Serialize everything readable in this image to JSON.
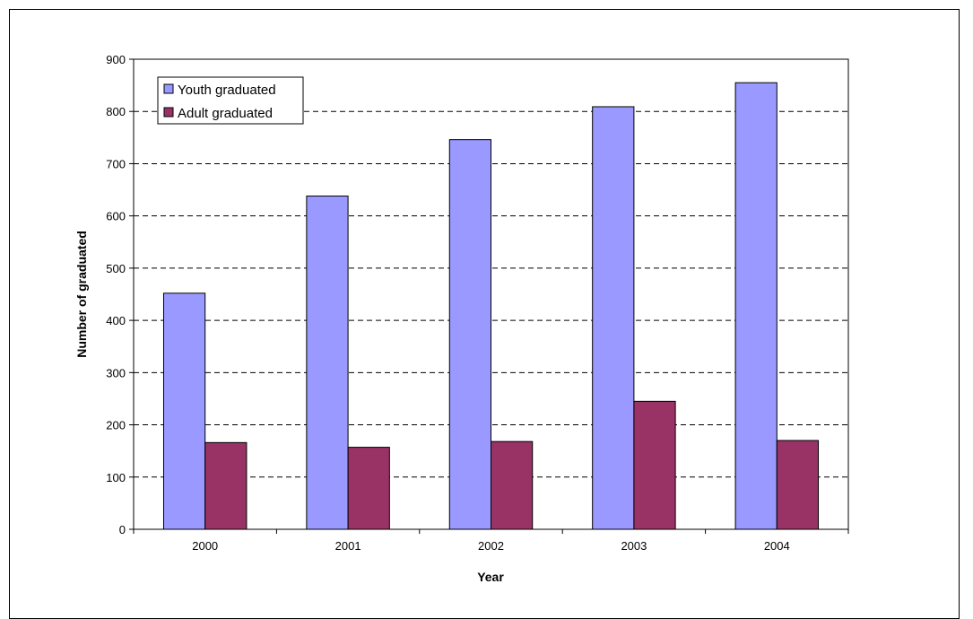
{
  "chart_data": {
    "type": "bar",
    "categories": [
      "2000",
      "2001",
      "2002",
      "2003",
      "2004"
    ],
    "series": [
      {
        "name": "Youth graduated",
        "values": [
          452,
          638,
          746,
          809,
          855
        ],
        "color": "#9999ff"
      },
      {
        "name": "Adult graduated",
        "values": [
          166,
          157,
          168,
          245,
          170
        ],
        "color": "#993366"
      }
    ],
    "title": "",
    "xlabel": "Year",
    "ylabel": "Number of graduated",
    "ylim": [
      0,
      900
    ],
    "yticks": [
      0,
      100,
      200,
      300,
      400,
      500,
      600,
      700,
      800,
      900
    ],
    "grid": "horizontal-dashed",
    "legend_position": "top-left"
  }
}
